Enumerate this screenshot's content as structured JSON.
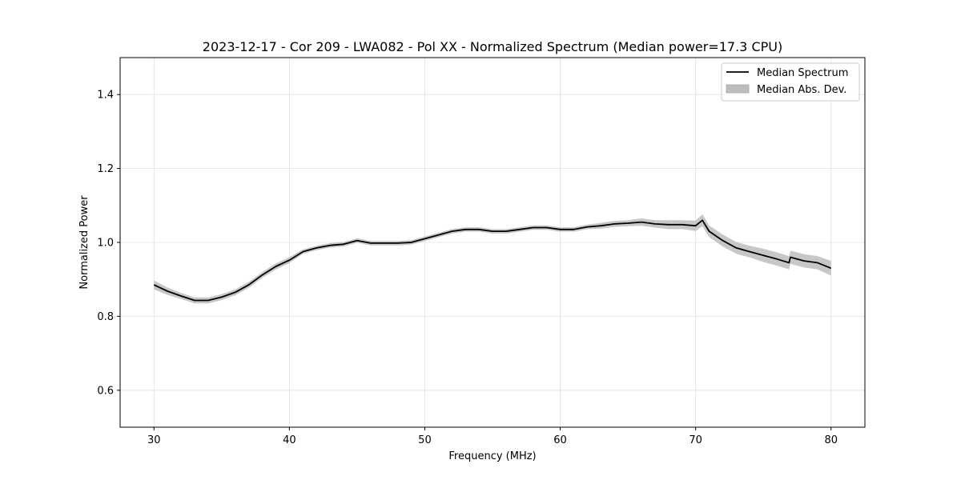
{
  "chart_data": {
    "type": "line",
    "title": "2023-12-17 - Cor 209 - LWA082 - Pol XX - Normalized Spectrum (Median power=17.3 CPU)",
    "xlabel": "Frequency (MHz)",
    "ylabel": "Normalized Power",
    "xlim": [
      27.5,
      82.5
    ],
    "ylim": [
      0.5,
      1.5
    ],
    "xticks": [
      30,
      40,
      50,
      60,
      70,
      80
    ],
    "yticks": [
      0.6,
      0.8,
      1.0,
      1.2,
      1.4
    ],
    "xtick_labels": [
      "30",
      "40",
      "50",
      "60",
      "70",
      "80"
    ],
    "ytick_labels": [
      "0.6",
      "0.8",
      "1.0",
      "1.2",
      "1.4"
    ],
    "grid": true,
    "legend_position": "top-right",
    "legend": [
      {
        "label": "Median Spectrum",
        "kind": "line",
        "color": "#000000"
      },
      {
        "label": "Median Abs. Dev.",
        "kind": "band",
        "color": "#bdbdbd"
      }
    ],
    "series": [
      {
        "name": "Median Spectrum",
        "x": [
          30,
          31,
          32,
          33,
          34,
          35,
          36,
          37,
          38,
          39,
          40,
          41,
          42,
          43,
          44,
          45,
          46,
          47,
          48,
          49,
          50,
          51,
          52,
          53,
          54,
          55,
          56,
          57,
          58,
          59,
          60,
          61,
          62,
          63,
          64,
          65,
          66,
          67,
          68,
          69,
          70,
          70.5,
          71,
          72,
          73,
          74,
          75,
          76,
          76.9,
          77,
          78,
          79,
          80
        ],
        "y": [
          0.885,
          0.868,
          0.855,
          0.843,
          0.843,
          0.852,
          0.865,
          0.885,
          0.912,
          0.935,
          0.952,
          0.975,
          0.985,
          0.992,
          0.995,
          1.005,
          0.998,
          0.998,
          0.998,
          1.0,
          1.01,
          1.02,
          1.03,
          1.035,
          1.035,
          1.03,
          1.03,
          1.035,
          1.04,
          1.04,
          1.035,
          1.035,
          1.042,
          1.045,
          1.05,
          1.052,
          1.055,
          1.05,
          1.048,
          1.048,
          1.045,
          1.06,
          1.03,
          1.005,
          0.985,
          0.975,
          0.965,
          0.955,
          0.945,
          0.96,
          0.95,
          0.945,
          0.93
        ],
        "mad": [
          0.012,
          0.01,
          0.008,
          0.008,
          0.008,
          0.008,
          0.008,
          0.008,
          0.008,
          0.008,
          0.008,
          0.006,
          0.006,
          0.006,
          0.006,
          0.006,
          0.006,
          0.006,
          0.006,
          0.006,
          0.006,
          0.006,
          0.006,
          0.006,
          0.006,
          0.006,
          0.006,
          0.006,
          0.006,
          0.006,
          0.006,
          0.006,
          0.006,
          0.008,
          0.008,
          0.008,
          0.01,
          0.01,
          0.012,
          0.012,
          0.014,
          0.016,
          0.016,
          0.016,
          0.016,
          0.016,
          0.018,
          0.018,
          0.018,
          0.018,
          0.018,
          0.018,
          0.02
        ]
      }
    ]
  }
}
